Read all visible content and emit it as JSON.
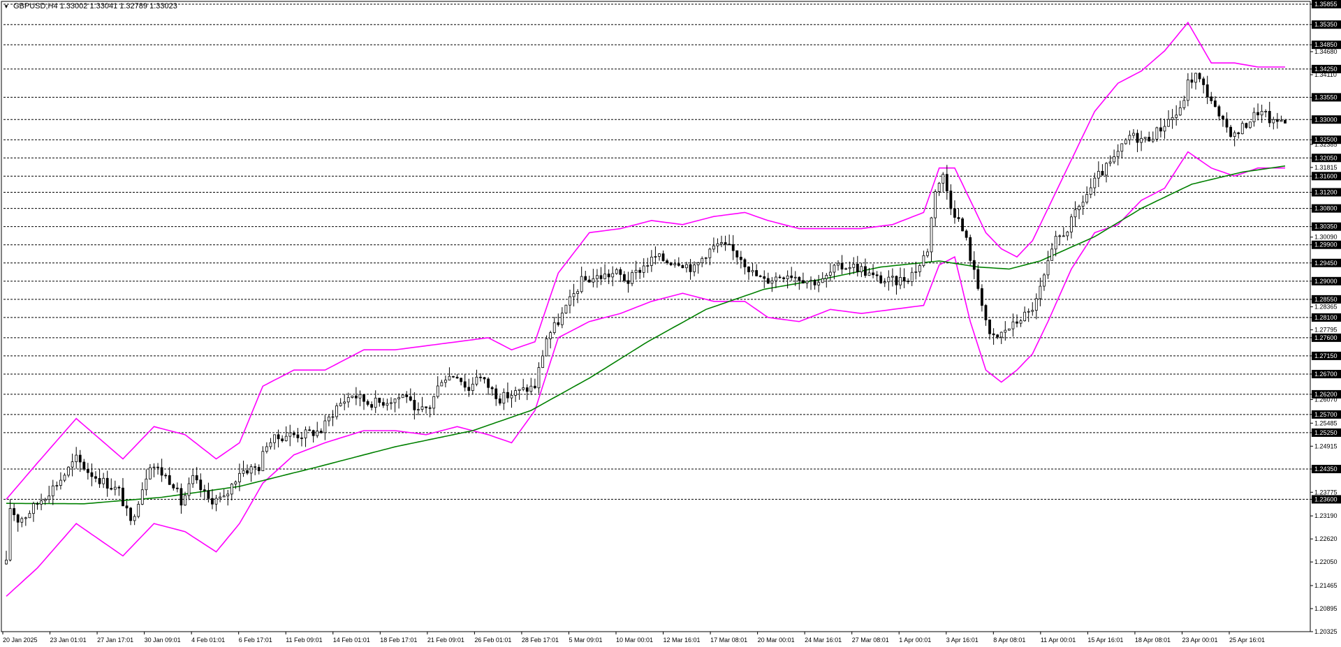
{
  "window": {
    "title": "GBPUSD,H4",
    "ohlc": "1.33002 1.33041 1.32789 1.33023"
  },
  "colors": {
    "background": "#ffffff",
    "candle": "#000000",
    "bollinger": "#ff00ff",
    "moving_average": "#008000",
    "grid": "#000000"
  },
  "chart_data": {
    "type": "candlestick",
    "symbol": "GBPUSD",
    "timeframe": "H4",
    "y_range": [
      1.20325,
      1.35855
    ],
    "price_axis_labels": [
      "1.35855",
      "1.35350",
      "1.34850",
      "1.34680",
      "1.34250",
      "1.34110",
      "1.33550",
      "1.33000",
      "1.32500",
      "1.32385",
      "1.32050",
      "1.31815",
      "1.31600",
      "1.31200",
      "1.30800",
      "1.30350",
      "1.30090",
      "1.29900",
      "1.29450",
      "1.29000",
      "1.28550",
      "1.28365",
      "1.28100",
      "1.27795",
      "1.27600",
      "1.27150",
      "1.26700",
      "1.26200",
      "1.26070",
      "1.25700",
      "1.25485",
      "1.25250",
      "1.24915",
      "1.24350",
      "1.23775",
      "1.23600",
      "1.23190",
      "1.22620",
      "1.22050",
      "1.21465",
      "1.20895",
      "1.20325"
    ],
    "highlighted_levels": [
      "1.35855",
      "1.35350",
      "1.34850",
      "1.34250",
      "1.33550",
      "1.33000",
      "1.32500",
      "1.32050",
      "1.31600",
      "1.31200",
      "1.30800",
      "1.30350",
      "1.29900",
      "1.29450",
      "1.29000",
      "1.28550",
      "1.28100",
      "1.27600",
      "1.27150",
      "1.26700",
      "1.26200",
      "1.25700",
      "1.25250",
      "1.24350",
      "1.23600"
    ],
    "time_axis_labels": [
      "20 Jan 2025",
      "23 Jan 01:01",
      "27 Jan 17:01",
      "30 Jan 09:01",
      "4 Feb 01:01",
      "6 Feb 17:01",
      "11 Feb 09:01",
      "14 Feb 01:01",
      "18 Feb 17:01",
      "21 Feb 09:01",
      "26 Feb 01:01",
      "28 Feb 17:01",
      "5 Mar 09:01",
      "10 Mar 00:01",
      "12 Mar 16:01",
      "17 Mar 08:01",
      "20 Mar 00:01",
      "24 Mar 16:01",
      "27 Mar 08:01",
      "1 Apr 00:01",
      "3 Apr 16:01",
      "8 Apr 08:01",
      "11 Apr 00:01",
      "15 Apr 16:01",
      "18 Apr 08:01",
      "23 Apr 00:01",
      "25 Apr 16:01"
    ],
    "price_path": [
      [
        0,
        1.22
      ],
      [
        1,
        1.234
      ],
      [
        3,
        1.231
      ],
      [
        5,
        1.232
      ],
      [
        9,
        1.236
      ],
      [
        14,
        1.241
      ],
      [
        18,
        1.246
      ],
      [
        21,
        1.243
      ],
      [
        24,
        1.241
      ],
      [
        29,
        1.238
      ],
      [
        32,
        1.23
      ],
      [
        35,
        1.239
      ],
      [
        37,
        1.245
      ],
      [
        43,
        1.24
      ],
      [
        45,
        1.235
      ],
      [
        48,
        1.241
      ],
      [
        52,
        1.236
      ],
      [
        56,
        1.236
      ],
      [
        60,
        1.243
      ],
      [
        65,
        1.244
      ],
      [
        67,
        1.25
      ],
      [
        72,
        1.252
      ],
      [
        76,
        1.252
      ],
      [
        81,
        1.253
      ],
      [
        85,
        1.259
      ],
      [
        89,
        1.262
      ],
      [
        93,
        1.26
      ],
      [
        96,
        1.26
      ],
      [
        100,
        1.261
      ],
      [
        103,
        1.262
      ],
      [
        105,
        1.257
      ],
      [
        109,
        1.259
      ],
      [
        112,
        1.266
      ],
      [
        116,
        1.267
      ],
      [
        119,
        1.263
      ],
      [
        121,
        1.267
      ],
      [
        125,
        1.263
      ],
      [
        127,
        1.261
      ],
      [
        130,
        1.262
      ],
      [
        136,
        1.264
      ],
      [
        139,
        1.276
      ],
      [
        142,
        1.28
      ],
      [
        145,
        1.285
      ],
      [
        148,
        1.29
      ],
      [
        152,
        1.291
      ],
      [
        157,
        1.292
      ],
      [
        160,
        1.29
      ],
      [
        163,
        1.293
      ],
      [
        167,
        1.296
      ],
      [
        170,
        1.295
      ],
      [
        173,
        1.295
      ],
      [
        177,
        1.293
      ],
      [
        180,
        1.297
      ],
      [
        183,
        1.299
      ],
      [
        186,
        1.298
      ],
      [
        189,
        1.296
      ],
      [
        192,
        1.292
      ],
      [
        195,
        1.29
      ],
      [
        198,
        1.291
      ],
      [
        201,
        1.292
      ],
      [
        204,
        1.291
      ],
      [
        207,
        1.29
      ],
      [
        210,
        1.29
      ],
      [
        213,
        1.293
      ],
      [
        217,
        1.294
      ],
      [
        220,
        1.293
      ],
      [
        223,
        1.291
      ],
      [
        226,
        1.29
      ],
      [
        229,
        1.29
      ],
      [
        232,
        1.291
      ],
      [
        235,
        1.294
      ],
      [
        237,
        1.298
      ],
      [
        239,
        1.313
      ],
      [
        241,
        1.316
      ],
      [
        243,
        1.309
      ],
      [
        245,
        1.305
      ],
      [
        247,
        1.3
      ],
      [
        249,
        1.292
      ],
      [
        251,
        1.285
      ],
      [
        253,
        1.276
      ],
      [
        255,
        1.276
      ],
      [
        257,
        1.278
      ],
      [
        259,
        1.279
      ],
      [
        261,
        1.281
      ],
      [
        263,
        1.282
      ],
      [
        265,
        1.285
      ],
      [
        267,
        1.291
      ],
      [
        270,
        1.3
      ],
      [
        273,
        1.303
      ],
      [
        277,
        1.31
      ],
      [
        281,
        1.316
      ],
      [
        285,
        1.32
      ],
      [
        289,
        1.326
      ],
      [
        293,
        1.325
      ],
      [
        296,
        1.327
      ],
      [
        299,
        1.33
      ],
      [
        302,
        1.332
      ],
      [
        304,
        1.339
      ],
      [
        306,
        1.341
      ],
      [
        308,
        1.338
      ],
      [
        310,
        1.335
      ],
      [
        312,
        1.33
      ],
      [
        314,
        1.328
      ],
      [
        316,
        1.326
      ],
      [
        318,
        1.328
      ],
      [
        320,
        1.33
      ],
      [
        322,
        1.332
      ],
      [
        324,
        1.331
      ],
      [
        326,
        1.329
      ],
      [
        328,
        1.33
      ],
      [
        329,
        1.3302
      ]
    ],
    "ma_path": [
      [
        0,
        1.235
      ],
      [
        20,
        1.2349
      ],
      [
        40,
        1.2365
      ],
      [
        60,
        1.2392
      ],
      [
        80,
        1.244
      ],
      [
        100,
        1.249
      ],
      [
        120,
        1.253
      ],
      [
        135,
        1.258
      ],
      [
        150,
        1.266
      ],
      [
        165,
        1.275
      ],
      [
        180,
        1.283
      ],
      [
        195,
        1.288
      ],
      [
        210,
        1.2905
      ],
      [
        225,
        1.2935
      ],
      [
        240,
        1.295
      ],
      [
        250,
        1.2935
      ],
      [
        258,
        1.293
      ],
      [
        266,
        1.295
      ],
      [
        280,
        1.301
      ],
      [
        292,
        1.308
      ],
      [
        305,
        1.314
      ],
      [
        318,
        1.317
      ],
      [
        329,
        1.3185
      ]
    ],
    "bollinger_upper_path": [
      [
        0,
        1.236
      ],
      [
        8,
        1.245
      ],
      [
        18,
        1.256
      ],
      [
        24,
        1.251
      ],
      [
        30,
        1.246
      ],
      [
        38,
        1.254
      ],
      [
        46,
        1.252
      ],
      [
        54,
        1.246
      ],
      [
        60,
        1.25
      ],
      [
        66,
        1.264
      ],
      [
        74,
        1.268
      ],
      [
        82,
        1.268
      ],
      [
        92,
        1.273
      ],
      [
        100,
        1.273
      ],
      [
        108,
        1.274
      ],
      [
        116,
        1.275
      ],
      [
        124,
        1.276
      ],
      [
        130,
        1.273
      ],
      [
        136,
        1.275
      ],
      [
        142,
        1.292
      ],
      [
        150,
        1.302
      ],
      [
        158,
        1.303
      ],
      [
        166,
        1.305
      ],
      [
        174,
        1.304
      ],
      [
        182,
        1.306
      ],
      [
        190,
        1.307
      ],
      [
        196,
        1.305
      ],
      [
        204,
        1.303
      ],
      [
        212,
        1.303
      ],
      [
        220,
        1.303
      ],
      [
        228,
        1.304
      ],
      [
        236,
        1.307
      ],
      [
        240,
        1.318
      ],
      [
        244,
        1.318
      ],
      [
        248,
        1.31
      ],
      [
        252,
        1.302
      ],
      [
        256,
        1.298
      ],
      [
        260,
        1.296
      ],
      [
        264,
        1.3
      ],
      [
        268,
        1.308
      ],
      [
        274,
        1.32
      ],
      [
        280,
        1.332
      ],
      [
        286,
        1.339
      ],
      [
        292,
        1.342
      ],
      [
        298,
        1.347
      ],
      [
        304,
        1.354
      ],
      [
        310,
        1.344
      ],
      [
        316,
        1.344
      ],
      [
        322,
        1.343
      ],
      [
        329,
        1.343
      ]
    ],
    "bollinger_lower_path": [
      [
        0,
        1.212
      ],
      [
        8,
        1.219
      ],
      [
        18,
        1.23
      ],
      [
        24,
        1.226
      ],
      [
        30,
        1.222
      ],
      [
        38,
        1.23
      ],
      [
        46,
        1.228
      ],
      [
        54,
        1.223
      ],
      [
        60,
        1.23
      ],
      [
        66,
        1.24
      ],
      [
        74,
        1.247
      ],
      [
        82,
        1.25
      ],
      [
        92,
        1.253
      ],
      [
        100,
        1.253
      ],
      [
        108,
        1.252
      ],
      [
        116,
        1.254
      ],
      [
        124,
        1.252
      ],
      [
        130,
        1.25
      ],
      [
        136,
        1.258
      ],
      [
        142,
        1.276
      ],
      [
        150,
        1.28
      ],
      [
        158,
        1.282
      ],
      [
        166,
        1.285
      ],
      [
        174,
        1.287
      ],
      [
        182,
        1.285
      ],
      [
        190,
        1.285
      ],
      [
        196,
        1.281
      ],
      [
        204,
        1.28
      ],
      [
        212,
        1.283
      ],
      [
        220,
        1.282
      ],
      [
        228,
        1.283
      ],
      [
        236,
        1.284
      ],
      [
        240,
        1.294
      ],
      [
        244,
        1.296
      ],
      [
        248,
        1.28
      ],
      [
        252,
        1.268
      ],
      [
        256,
        1.265
      ],
      [
        260,
        1.268
      ],
      [
        264,
        1.272
      ],
      [
        268,
        1.28
      ],
      [
        274,
        1.293
      ],
      [
        280,
        1.302
      ],
      [
        286,
        1.304
      ],
      [
        292,
        1.31
      ],
      [
        298,
        1.313
      ],
      [
        304,
        1.322
      ],
      [
        310,
        1.318
      ],
      [
        316,
        1.316
      ],
      [
        322,
        1.318
      ],
      [
        329,
        1.318
      ]
    ]
  }
}
